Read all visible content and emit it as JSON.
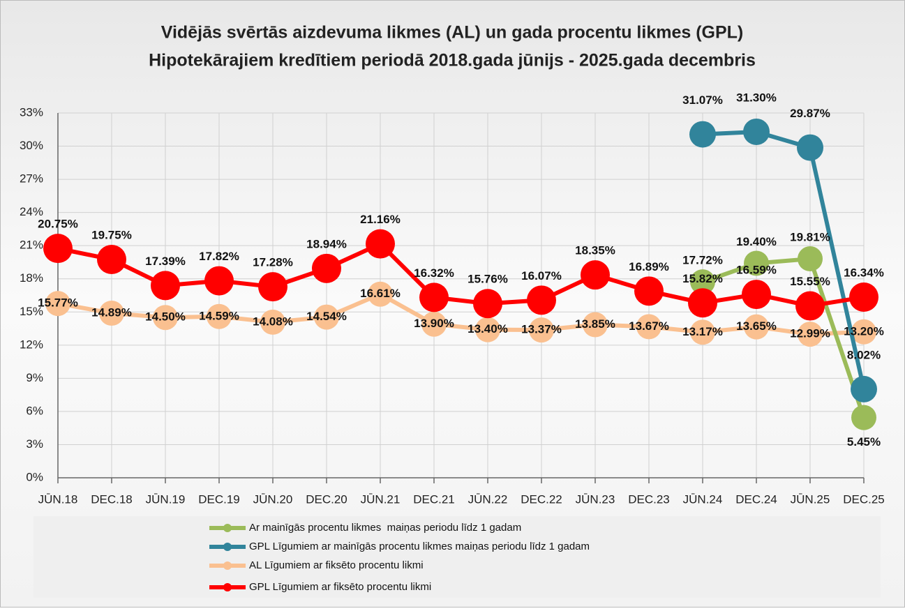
{
  "chart_data": {
    "type": "line",
    "title": [
      "Vidējās svērtās aizdevuma likmes (AL) un gada procentu likmes (GPL)",
      "Hipotekārajiem kredītiem periodā 2018.gada jūnijs - 2025.gada decembris"
    ],
    "categories": [
      "JŪN.18",
      "DEC.18",
      "JŪN.19",
      "DEC.19",
      "JŪN.20",
      "DEC.20",
      "JŪN.21",
      "DEC.21",
      "JŪN.22",
      "DEC.22",
      "JŪN.23",
      "DEC.23",
      "JŪN.24",
      "DEC.24",
      "JŪN.25",
      "DEC.25"
    ],
    "series": [
      {
        "name": "Ar mainīgās procentu likmes  maiņas periodu līdz 1 gadam",
        "color": "#9bbb59",
        "values": [
          null,
          null,
          null,
          null,
          null,
          null,
          null,
          null,
          null,
          null,
          null,
          null,
          17.72,
          19.4,
          19.81,
          5.45
        ],
        "value_labels": [
          null,
          null,
          null,
          null,
          null,
          null,
          null,
          null,
          null,
          null,
          null,
          null,
          "17.72%",
          "19.40%",
          "19.81%",
          "5.45%"
        ]
      },
      {
        "name": "GPL Līgumiem ar mainīgās procentu likmes maiņas periodu līdz 1 gadam",
        "color": "#31849b",
        "values": [
          null,
          null,
          null,
          null,
          null,
          null,
          null,
          null,
          null,
          null,
          null,
          null,
          31.07,
          31.3,
          29.87,
          8.02
        ],
        "value_labels": [
          null,
          null,
          null,
          null,
          null,
          null,
          null,
          null,
          null,
          null,
          null,
          null,
          "31.07%",
          "31.30%",
          "29.87%",
          "8.02%"
        ]
      },
      {
        "name": "AL Līgumiem ar fiksēto procentu likmi",
        "color": "#fac090",
        "values": [
          15.77,
          14.89,
          14.5,
          14.59,
          14.08,
          14.54,
          16.61,
          13.9,
          13.4,
          13.37,
          13.85,
          13.67,
          13.17,
          13.65,
          12.99,
          13.2
        ],
        "value_labels": [
          "15.77%",
          "14.89%",
          "14.50%",
          "14.59%",
          "14.08%",
          "14.54%",
          "16.61%",
          "13.90%",
          "13.40%",
          "13.37%",
          "13.85%",
          "13.67%",
          "13.17%",
          "13.65%",
          "12.99%",
          "13.20%"
        ]
      },
      {
        "name": "GPL Līgumiem ar fiksēto procentu likmi",
        "color": "#ff0000",
        "values": [
          20.75,
          19.75,
          17.39,
          17.82,
          17.28,
          18.94,
          21.16,
          16.32,
          15.76,
          16.07,
          18.35,
          16.89,
          15.82,
          16.59,
          15.55,
          16.34
        ],
        "value_labels": [
          "20.75%",
          "19.75%",
          "17.39%",
          "17.82%",
          "17.28%",
          "18.94%",
          "21.16%",
          "16.32%",
          "15.76%",
          "16.07%",
          "18.35%",
          "16.89%",
          "15.82%",
          "16.59%",
          "15.55%",
          "16.34%"
        ]
      }
    ],
    "ylim": [
      0,
      33
    ],
    "yticks": [
      {
        "value": 0,
        "label": "0%"
      },
      {
        "value": 3,
        "label": "3%"
      },
      {
        "value": 6,
        "label": "6%"
      },
      {
        "value": 9,
        "label": "9%"
      },
      {
        "value": 12,
        "label": "12%"
      },
      {
        "value": 15,
        "label": "15%"
      },
      {
        "value": 18,
        "label": "18%"
      },
      {
        "value": 21,
        "label": "21%"
      },
      {
        "value": 24,
        "label": "24%"
      },
      {
        "value": 27,
        "label": "27%"
      },
      {
        "value": 30,
        "label": "30%"
      },
      {
        "value": 33,
        "label": "33%"
      }
    ],
    "grid": true,
    "legend": "bottom"
  }
}
